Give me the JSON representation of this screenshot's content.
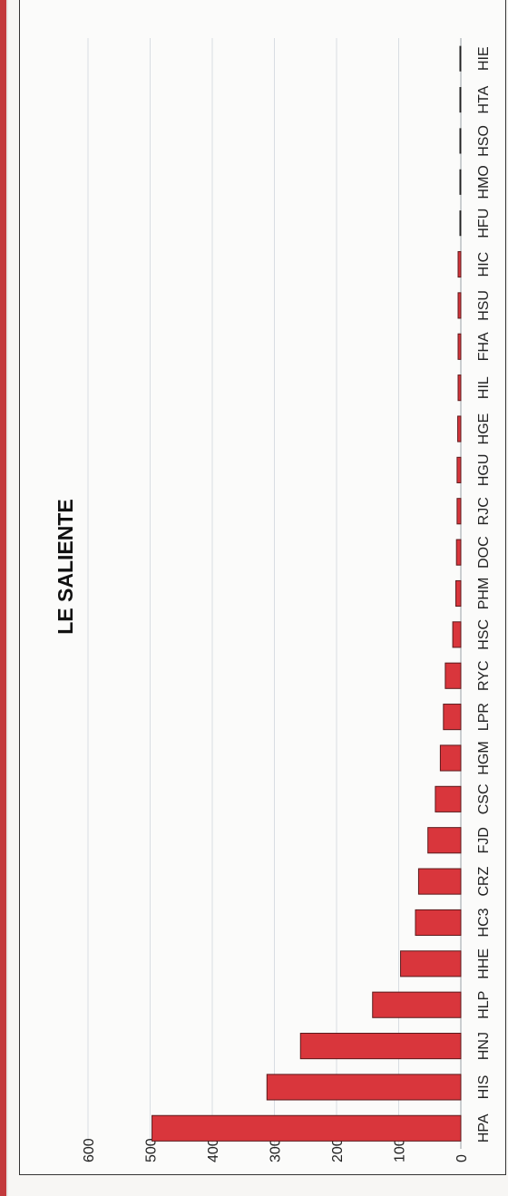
{
  "chart_data": {
    "type": "bar",
    "orientation": "horizontal",
    "title": "LE SALIENTE",
    "categories": [
      "HPA",
      "HIS",
      "HNJ",
      "HLP",
      "HHE",
      "HC3",
      "CRZ",
      "FJD",
      "CSC",
      "HGM",
      "LPR",
      "RYC",
      "HSC",
      "PHM",
      "DOC",
      "RJC",
      "HGU",
      "HGE",
      "HIL",
      "FHA",
      "HSU",
      "HIC",
      "HFU",
      "HMO",
      "HSO",
      "HTA",
      "HIE"
    ],
    "values": [
      497,
      312,
      258,
      142,
      97,
      73,
      68,
      53,
      41,
      33,
      28,
      25,
      13,
      8,
      7,
      6,
      6,
      5,
      4,
      4,
      3,
      3,
      0,
      0,
      0,
      0,
      0
    ],
    "y_ticks": [
      "0",
      "100",
      "200",
      "300",
      "400",
      "500",
      "600"
    ],
    "ylim": [
      0,
      600
    ],
    "grid": true,
    "bar_color": "#d9363c"
  }
}
